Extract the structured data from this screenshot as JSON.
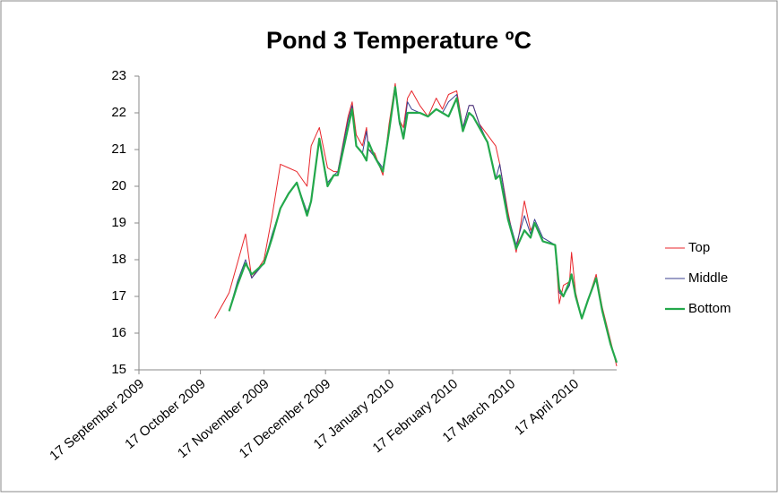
{
  "chart_data": {
    "type": "line",
    "title": "Pond 3 Temperature ºC",
    "x": [
      "2009-10-24",
      "2009-10-31",
      "2009-11-04",
      "2009-11-08",
      "2009-11-11",
      "2009-11-17",
      "2009-11-21",
      "2009-11-25",
      "2009-11-29",
      "2009-12-03",
      "2009-12-08",
      "2009-12-10",
      "2009-12-14",
      "2009-12-18",
      "2009-12-21",
      "2009-12-23",
      "2009-12-28",
      "2009-12-30",
      "2010-01-01",
      "2010-01-04",
      "2010-01-06",
      "2010-01-07",
      "2010-01-10",
      "2010-01-14",
      "2010-01-17",
      "2010-01-20",
      "2010-01-22",
      "2010-01-24",
      "2010-01-26",
      "2010-01-28",
      "2010-02-01",
      "2010-02-05",
      "2010-02-09",
      "2010-02-12",
      "2010-02-15",
      "2010-02-19",
      "2010-02-22",
      "2010-02-25",
      "2010-02-27",
      "2010-03-02",
      "2010-03-06",
      "2010-03-10",
      "2010-03-12",
      "2010-03-16",
      "2010-03-20",
      "2010-03-24",
      "2010-03-27",
      "2010-03-29",
      "2010-04-02",
      "2010-04-08",
      "2010-04-10",
      "2010-04-12",
      "2010-04-15",
      "2010-04-16",
      "2010-04-18",
      "2010-04-21",
      "2010-04-24",
      "2010-04-28",
      "2010-05-01",
      "2010-05-05",
      "2010-05-08"
    ],
    "series": [
      {
        "name": "Top",
        "color": "#e8262b",
        "values": [
          16.4,
          17.1,
          17.9,
          18.7,
          17.5,
          18.0,
          19.2,
          20.6,
          20.5,
          20.4,
          20.0,
          21.1,
          21.6,
          20.5,
          20.4,
          20.4,
          21.9,
          22.3,
          21.4,
          21.1,
          21.6,
          21.0,
          20.9,
          20.3,
          21.7,
          22.8,
          21.8,
          21.6,
          22.4,
          22.6,
          22.2,
          21.9,
          22.4,
          22.1,
          22.5,
          22.6,
          21.6,
          22.2,
          22.2,
          21.7,
          21.4,
          21.1,
          20.6,
          19.3,
          18.2,
          19.6,
          18.8,
          19.0,
          18.5,
          18.4,
          16.8,
          17.3,
          17.4,
          18.2,
          17.1,
          16.4,
          16.9,
          17.6,
          16.7,
          15.8,
          15.1
        ]
      },
      {
        "name": "Middle",
        "color": "#3a3f8f",
        "values": [
          null,
          16.6,
          17.4,
          18.0,
          17.5,
          17.9,
          18.7,
          19.4,
          19.8,
          20.1,
          19.3,
          19.6,
          21.3,
          20.1,
          20.3,
          20.4,
          21.8,
          22.2,
          21.1,
          20.9,
          21.5,
          21.0,
          20.8,
          20.5,
          21.5,
          22.7,
          21.7,
          21.4,
          22.3,
          22.1,
          22.0,
          21.9,
          22.1,
          22.0,
          22.3,
          22.5,
          21.6,
          22.2,
          22.2,
          21.7,
          21.2,
          20.2,
          20.6,
          19.2,
          18.4,
          19.2,
          18.7,
          19.1,
          18.6,
          18.4,
          17.1,
          17.0,
          17.3,
          17.6,
          17.0,
          16.4,
          16.9,
          17.5,
          16.6,
          15.7,
          15.2
        ]
      },
      {
        "name": "Bottom",
        "color": "#23a84b",
        "values": [
          null,
          16.6,
          17.3,
          17.9,
          17.6,
          17.9,
          18.6,
          19.4,
          19.8,
          20.1,
          19.2,
          19.6,
          21.3,
          20.0,
          20.3,
          20.3,
          21.6,
          22.1,
          21.1,
          20.9,
          20.7,
          21.2,
          20.8,
          20.4,
          21.5,
          22.7,
          21.8,
          21.3,
          22.0,
          22.0,
          22.0,
          21.9,
          22.1,
          22.0,
          21.9,
          22.4,
          21.5,
          22.0,
          21.9,
          21.6,
          21.2,
          20.2,
          20.3,
          19.1,
          18.3,
          18.8,
          18.6,
          19.0,
          18.5,
          18.4,
          17.2,
          17.0,
          17.4,
          17.6,
          17.0,
          16.4,
          16.9,
          17.5,
          16.6,
          15.7,
          15.2
        ]
      }
    ],
    "xlim": [
      "2009-09-17",
      "2010-05-08"
    ],
    "xticks": [
      {
        "value": "2009-09-17",
        "label": "17 September 2009"
      },
      {
        "value": "2009-10-17",
        "label": "17 October 2009"
      },
      {
        "value": "2009-11-17",
        "label": "17 November 2009"
      },
      {
        "value": "2009-12-17",
        "label": "17 December 2009"
      },
      {
        "value": "2010-01-17",
        "label": "17 January 2010"
      },
      {
        "value": "2010-02-17",
        "label": "17 February 2010"
      },
      {
        "value": "2010-03-17",
        "label": "17 March 2010"
      },
      {
        "value": "2010-04-17",
        "label": "17 April 2010"
      }
    ],
    "ylim": [
      15,
      23
    ],
    "yticks": [
      15,
      16,
      17,
      18,
      19,
      20,
      21,
      22,
      23
    ],
    "grid": false,
    "legend": "right"
  }
}
